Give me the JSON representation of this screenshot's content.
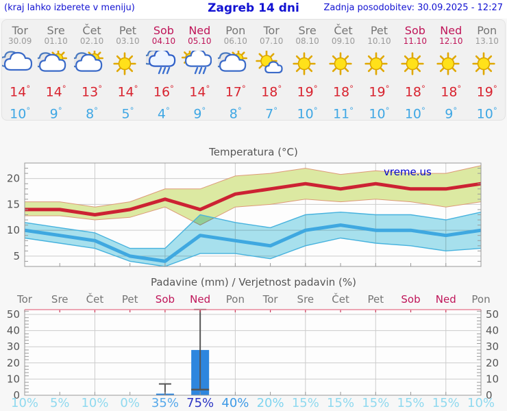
{
  "header": {
    "left_note": "(kraj lahko izberete v meniju)",
    "title": "Zagreb 14 dni",
    "updated": "Zadnja posodobitev: 30.09.2025 - 12:27"
  },
  "degree_symbol": "°",
  "forecast": {
    "days": [
      {
        "name": "Tor",
        "date": "30.09",
        "icon": "cloudy",
        "tmax": 14,
        "tmin": 10,
        "weekend": false
      },
      {
        "name": "Sre",
        "date": "01.10",
        "icon": "sun-cloud",
        "tmax": 14,
        "tmin": 9,
        "weekend": false
      },
      {
        "name": "Čet",
        "date": "02.10",
        "icon": "sun-cloud",
        "tmax": 13,
        "tmin": 8,
        "weekend": false
      },
      {
        "name": "Pet",
        "date": "03.10",
        "icon": "sunny",
        "tmax": 14,
        "tmin": 5,
        "weekend": false
      },
      {
        "name": "Sob",
        "date": "04.10",
        "icon": "rain",
        "tmax": 16,
        "tmin": 4,
        "weekend": true
      },
      {
        "name": "Ned",
        "date": "05.10",
        "icon": "sun-rain",
        "tmax": 14,
        "tmin": 9,
        "weekend": true
      },
      {
        "name": "Pon",
        "date": "06.10",
        "icon": "sun-cloud",
        "tmax": 17,
        "tmin": 8,
        "weekend": false
      },
      {
        "name": "Tor",
        "date": "07.10",
        "icon": "sunny-small-cloud",
        "tmax": 18,
        "tmin": 7,
        "weekend": false
      },
      {
        "name": "Sre",
        "date": "08.10",
        "icon": "sunny",
        "tmax": 19,
        "tmin": 10,
        "weekend": false
      },
      {
        "name": "Čet",
        "date": "09.10",
        "icon": "sunny",
        "tmax": 18,
        "tmin": 11,
        "weekend": false
      },
      {
        "name": "Pet",
        "date": "10.10",
        "icon": "sunny",
        "tmax": 19,
        "tmin": 10,
        "weekend": false
      },
      {
        "name": "Sob",
        "date": "11.10",
        "icon": "sunny",
        "tmax": 18,
        "tmin": 10,
        "weekend": true
      },
      {
        "name": "Ned",
        "date": "12.10",
        "icon": "sunny",
        "tmax": 18,
        "tmin": 9,
        "weekend": true
      },
      {
        "name": "Pon",
        "date": "13.10",
        "icon": "sunny",
        "tmax": 19,
        "tmin": 10,
        "weekend": false
      }
    ]
  },
  "chart_data": [
    {
      "type": "line",
      "title": "Temperatura (°C)",
      "watermark": "vreme.us",
      "ylim": [
        3,
        23
      ],
      "yticks": [
        5,
        10,
        15,
        20
      ],
      "grid": true,
      "series": [
        {
          "name": "max_temp",
          "values": [
            14,
            14,
            13,
            14,
            16,
            14,
            17,
            18,
            19,
            18,
            19,
            18,
            18,
            19
          ]
        },
        {
          "name": "max_band_hi",
          "values": [
            15.5,
            15.5,
            14.5,
            15.5,
            18,
            18,
            20.5,
            21,
            22,
            20.8,
            21.5,
            21,
            21,
            22.5
          ]
        },
        {
          "name": "max_band_lo",
          "values": [
            12.8,
            12.8,
            12,
            12.5,
            14.5,
            11,
            14.5,
            15,
            16,
            15.5,
            16,
            15.5,
            14.5,
            15.5
          ]
        },
        {
          "name": "min_temp",
          "values": [
            10,
            9,
            8,
            5,
            4,
            9,
            8,
            7,
            10,
            11,
            10,
            10,
            9,
            10
          ]
        },
        {
          "name": "min_band_hi",
          "values": [
            11.5,
            10.5,
            9.5,
            6.5,
            6.5,
            13,
            11.5,
            10.5,
            13,
            13.5,
            13,
            13,
            12,
            13.5
          ]
        },
        {
          "name": "min_band_lo",
          "values": [
            8.5,
            7.5,
            6.5,
            4,
            3,
            5.5,
            5.5,
            4.5,
            7,
            8.5,
            7.5,
            7,
            6,
            6.5
          ]
        }
      ]
    },
    {
      "type": "bar",
      "title": "Padavine (mm) / Verjetnost padavin (%)",
      "ylim": [
        0,
        50
      ],
      "yticks": [
        0,
        10,
        20,
        30,
        40,
        50
      ],
      "grid": true,
      "values": [
        0,
        0,
        0,
        0,
        1,
        28,
        0,
        0,
        0,
        0,
        0,
        0,
        0,
        0
      ],
      "whisker_hi": [
        null,
        null,
        null,
        null,
        7,
        53,
        null,
        null,
        null,
        null,
        null,
        null,
        null,
        null
      ],
      "whisker_lo": [
        null,
        null,
        null,
        null,
        0,
        3.5,
        null,
        null,
        null,
        null,
        null,
        null,
        null,
        null
      ],
      "probabilities": [
        "10%",
        "5%",
        "10%",
        "0%",
        "35%",
        "75%",
        "40%",
        "20%",
        "15%",
        "15%",
        "15%",
        "15%",
        "15%",
        "10%"
      ],
      "probability_colors": [
        "#8fd9ef",
        "#8fd9ef",
        "#8fd9ef",
        "#8fd9ef",
        "#55a8ea",
        "#2b35c4",
        "#3d9ae6",
        "#7fd4ef",
        "#8fd9ef",
        "#8fd9ef",
        "#8fd9ef",
        "#8fd9ef",
        "#8fd9ef",
        "#8fd9ef"
      ]
    }
  ],
  "colors": {
    "header_text": "#1212d2",
    "weekend": "#bf1458",
    "weekday": "#757575",
    "tmax": "#d8232f",
    "tmin": "#3fa7e4",
    "max_line": "#cc2233",
    "max_band_fill": "#dce9a2",
    "max_band_edge": "#dd9977",
    "min_line": "#3fa8e0",
    "min_band_fill": "#a8e2ef",
    "min_band_edge": "#46b2de",
    "bar": "#2e86de",
    "whisker": "#555555",
    "grid": "#cccccc",
    "axis": "#999999",
    "precip_top_axis": "#e8889b",
    "watermark": "#0000cc"
  }
}
